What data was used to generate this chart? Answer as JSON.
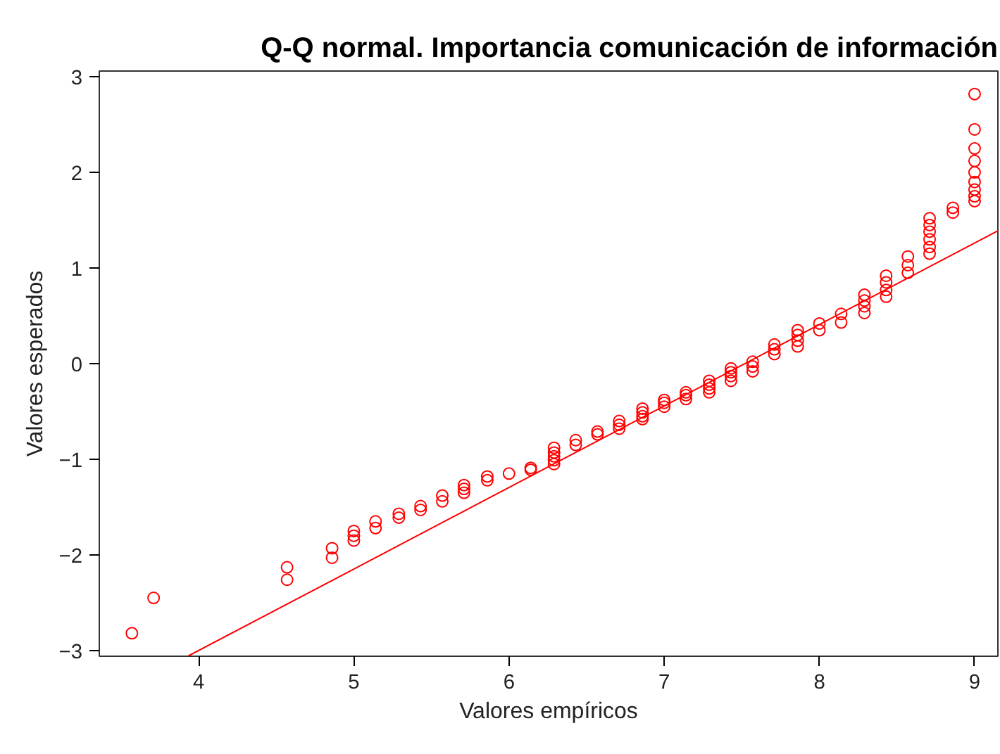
{
  "chart_data": {
    "type": "scatter",
    "title": "Q-Q normal. Importancia comunicación de información",
    "xlabel": "Valores empíricos",
    "ylabel": "Valores esperados",
    "xlim": [
      3.36,
      9.15
    ],
    "ylim": [
      -3.06,
      3.06
    ],
    "xticks": [
      4,
      5,
      6,
      7,
      8,
      9
    ],
    "yticks": [
      -3,
      -2,
      -1,
      0,
      1,
      2,
      3
    ],
    "grid": false,
    "marker": "circle",
    "series": [
      {
        "color": "#ff0000",
        "x": [
          3.57,
          3.71,
          4.57,
          4.57,
          4.86,
          4.86,
          5.0,
          5.0,
          5.0,
          5.14,
          5.14,
          5.29,
          5.29,
          5.43,
          5.43,
          5.57,
          5.57,
          5.71,
          5.71,
          5.71,
          5.86,
          5.86,
          6.0,
          6.14,
          6.14,
          6.29,
          6.29,
          6.29,
          6.29,
          6.29,
          6.43,
          6.43,
          6.57,
          6.57,
          6.71,
          6.71,
          6.71,
          6.86,
          6.86,
          6.86,
          6.86,
          7.0,
          7.0,
          7.0,
          7.14,
          7.14,
          7.14,
          7.29,
          7.29,
          7.29,
          7.29,
          7.43,
          7.43,
          7.43,
          7.43,
          7.57,
          7.57,
          7.57,
          7.71,
          7.71,
          7.71,
          7.86,
          7.86,
          7.86,
          7.86,
          8.0,
          8.0,
          8.14,
          8.14,
          8.29,
          8.29,
          8.29,
          8.29,
          8.43,
          8.43,
          8.43,
          8.43,
          8.57,
          8.57,
          8.57,
          8.71,
          8.71,
          8.71,
          8.71,
          8.71,
          8.71,
          8.86,
          8.86,
          9.0,
          9.0,
          9.0,
          9.0,
          9.0,
          9.0,
          9.0,
          9.0,
          9.0
        ],
        "values": [
          -2.82,
          -2.45,
          -2.13,
          -2.26,
          -1.93,
          -2.03,
          -1.75,
          -1.8,
          -1.85,
          -1.65,
          -1.72,
          -1.57,
          -1.61,
          -1.49,
          -1.53,
          -1.38,
          -1.44,
          -1.27,
          -1.31,
          -1.35,
          -1.18,
          -1.22,
          -1.15,
          -1.09,
          -1.11,
          -0.88,
          -0.93,
          -0.97,
          -1.01,
          -1.05,
          -0.8,
          -0.85,
          -0.71,
          -0.74,
          -0.6,
          -0.64,
          -0.68,
          -0.47,
          -0.51,
          -0.55,
          -0.58,
          -0.38,
          -0.41,
          -0.45,
          -0.3,
          -0.33,
          -0.37,
          -0.18,
          -0.22,
          -0.26,
          -0.3,
          -0.05,
          -0.09,
          -0.13,
          -0.18,
          0.02,
          -0.03,
          -0.08,
          0.1,
          0.15,
          0.2,
          0.18,
          0.24,
          0.3,
          0.35,
          0.35,
          0.42,
          0.43,
          0.52,
          0.53,
          0.6,
          0.66,
          0.72,
          0.7,
          0.77,
          0.85,
          0.92,
          0.95,
          1.03,
          1.12,
          1.15,
          1.22,
          1.3,
          1.38,
          1.45,
          1.52,
          1.58,
          1.63,
          1.7,
          1.75,
          1.82,
          1.9,
          2.0,
          2.12,
          2.25,
          2.45,
          2.82
        ]
      },
      {
        "type": "line",
        "marker": "none",
        "color": "#ff0000",
        "x": [
          3.93,
          9.15
        ],
        "values": [
          -3.06,
          1.39
        ]
      }
    ]
  }
}
